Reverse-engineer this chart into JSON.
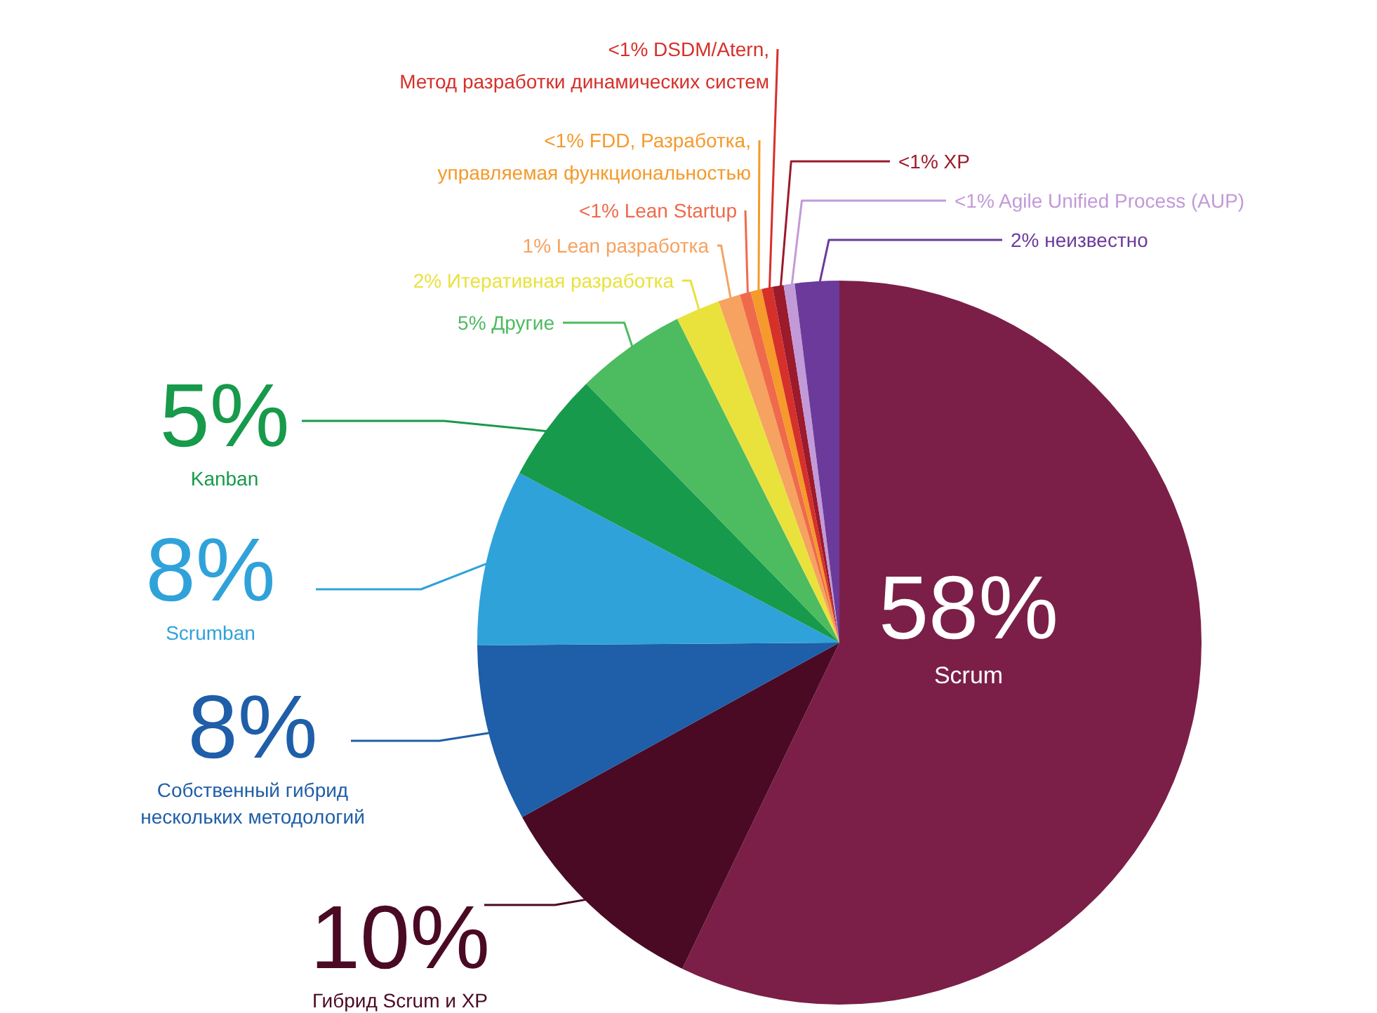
{
  "chart_data": {
    "type": "pie",
    "categories": [
      "Scrum",
      "Гибрид Scrum и XP",
      "Собственный гибрид нескольких методологий",
      "Scrumban",
      "Kanban",
      "Другие",
      "Итеративная разработка",
      "Lean разработка",
      "Lean Startup",
      "FDD, Разработка, управляемая функциональностью",
      "DSDM/Atern, Метод разработки динамических систем",
      "XP",
      "Agile Unified Process (AUP)",
      "неизвестно"
    ],
    "values": [
      58,
      10,
      8,
      8,
      5,
      5,
      2,
      1,
      0.5,
      0.5,
      0.5,
      0.5,
      0.5,
      2
    ],
    "value_labels": [
      "58%",
      "10%",
      "8%",
      "8%",
      "5%",
      "5%",
      "2%",
      "1%",
      "<1%",
      "<1%",
      "<1%",
      "<1%",
      "<1%",
      "2%"
    ],
    "colors": [
      "#7b1f48",
      "#4a0a24",
      "#1f5ea8",
      "#30a2da",
      "#179a4b",
      "#4dbb60",
      "#e9e23c",
      "#f6a260",
      "#ef6a4b",
      "#f59a2b",
      "#d6302a",
      "#9b1a2c",
      "#c29ad8",
      "#6b3a9b"
    ]
  }
}
